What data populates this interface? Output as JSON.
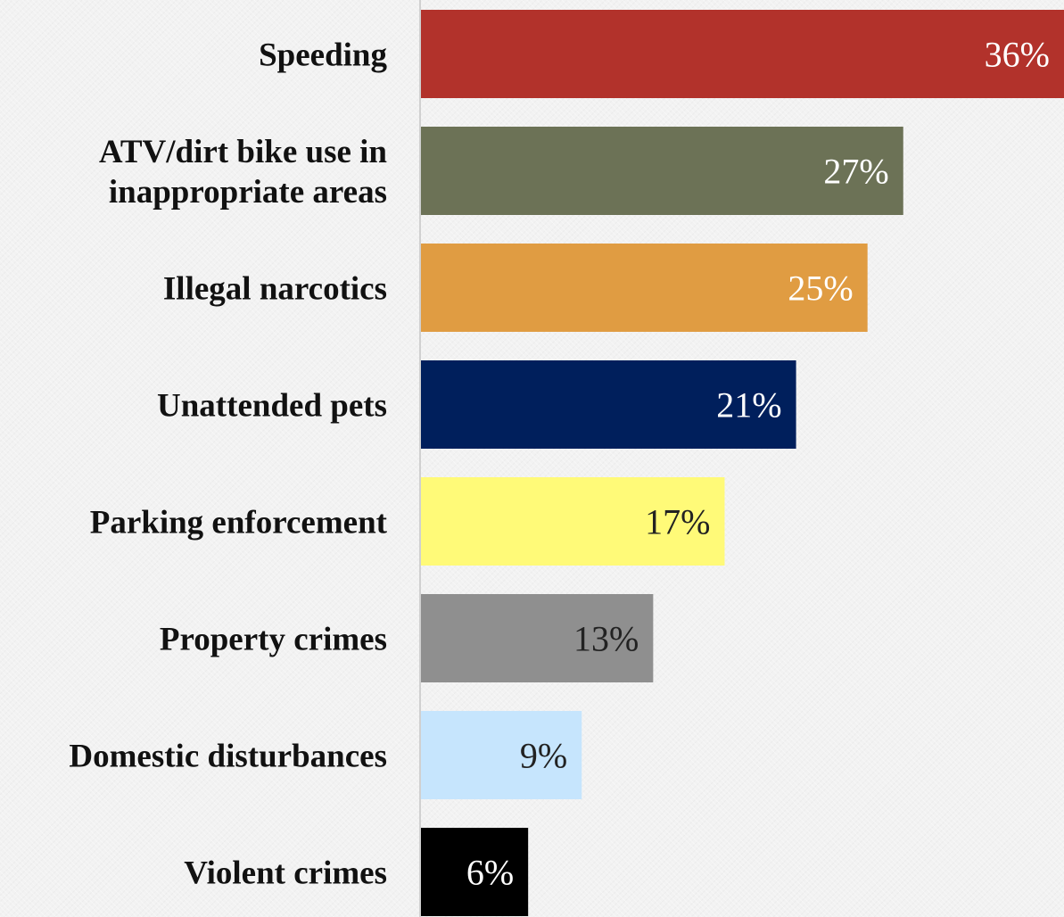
{
  "chart_data": {
    "type": "bar",
    "orientation": "horizontal",
    "categories": [
      [
        "Speeding"
      ],
      [
        "ATV/dirt bike use in",
        "inappropriate areas"
      ],
      [
        "Illegal narcotics"
      ],
      [
        "Unattended pets"
      ],
      [
        "Parking enforcement"
      ],
      [
        "Property crimes"
      ],
      [
        "Domestic disturbances"
      ],
      [
        "Violent crimes"
      ]
    ],
    "values": [
      36,
      27,
      25,
      21,
      17,
      13,
      9,
      6
    ],
    "value_labels": [
      "36%",
      "27%",
      "25%",
      "21%",
      "17%",
      "13%",
      "9%",
      "6%"
    ],
    "colors": [
      "#b2322b",
      "#6c7256",
      "#e09c42",
      "#001f5c",
      "#fffa78",
      "#8f8f8f",
      "#c6e5fd",
      "#000000"
    ],
    "label_colors": [
      "#ffffff",
      "#ffffff",
      "#ffffff",
      "#ffffff",
      "#222222",
      "#222222",
      "#222222",
      "#ffffff"
    ],
    "xlim": [
      0,
      36
    ],
    "title": "",
    "xlabel": "",
    "ylabel": "",
    "grid": false,
    "legend": "none"
  }
}
